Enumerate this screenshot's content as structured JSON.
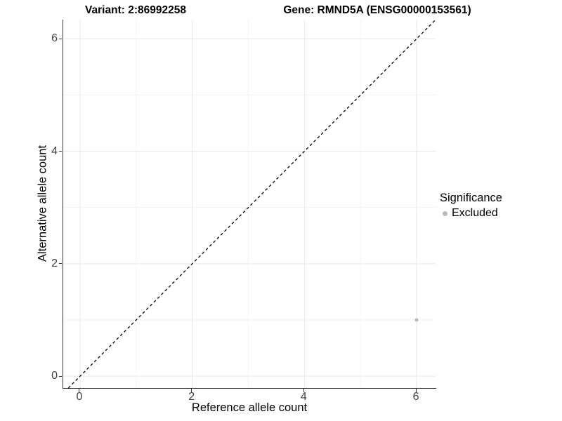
{
  "titles": {
    "variant": "Variant: 2:86992258",
    "gene": "Gene: RMND5A (ENSG00000153561)"
  },
  "colors": {
    "background": "#ffffff",
    "grid_major": "#e8e8e8",
    "grid_minor": "#f2f2f2",
    "axis_line": "#333333",
    "tick_label": "#404040",
    "reference_line": "#000000",
    "point": "#b9b9b9"
  },
  "chart_data": {
    "type": "scatter",
    "titles": {
      "variant": "Variant: 2:86992258",
      "gene": "Gene: RMND5A (ENSG00000153561)"
    },
    "xlabel": "Reference allele count",
    "ylabel": "Alternative allele count",
    "xlim": [
      -0.3,
      6.35
    ],
    "ylim": [
      -0.21,
      6.34
    ],
    "x_ticks": [
      0,
      2,
      4,
      6
    ],
    "y_ticks": [
      0,
      2,
      4,
      6
    ],
    "x_minor_ticks": [
      1,
      3,
      5
    ],
    "y_minor_ticks": [
      1,
      3,
      5
    ],
    "grid": true,
    "legend": {
      "title": "Significance",
      "position": "right",
      "items": [
        {
          "label": "Excluded",
          "color": "#b9b9b9"
        }
      ]
    },
    "series": [
      {
        "name": "Excluded",
        "color": "#b9b9b9",
        "points": [
          {
            "x": 6,
            "y": 1
          }
        ]
      }
    ],
    "reference_line": {
      "type": "identity",
      "slope": 1,
      "intercept": 0,
      "style": "dashed",
      "color": "#000000"
    }
  }
}
